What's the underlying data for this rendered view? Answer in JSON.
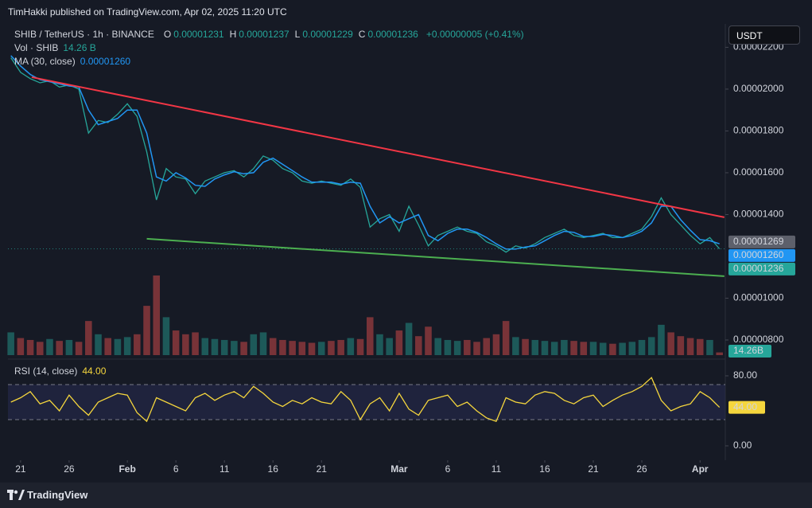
{
  "header": {
    "publisher": "TimHakki published on TradingView.com, Apr 02, 2025 11:20 UTC"
  },
  "toolbar": {
    "currency": "USDT"
  },
  "footer": {
    "brand": "TradingView"
  },
  "legend": {
    "symbol": "SHIB / TetherUS · 1h · BINANCE",
    "ohlc": [
      {
        "key": "O",
        "value": "0.00001231"
      },
      {
        "key": "H",
        "value": "0.00001237"
      },
      {
        "key": "L",
        "value": "0.00001229"
      },
      {
        "key": "C",
        "value": "0.00001236"
      }
    ],
    "change": "+0.00000005 (+0.41%)",
    "volume": {
      "name": "Vol · SHIB",
      "value": "14.26 B"
    },
    "ma": {
      "name": "MA (30, close)"
    },
    "rsi": {
      "name": "RSI (14, close)"
    }
  },
  "chart_data": [
    {
      "type": "line",
      "x": [
        -1,
        0,
        1,
        2,
        3,
        4,
        5,
        6,
        7,
        8,
        9,
        10,
        11,
        12,
        13,
        14,
        15,
        16,
        17,
        18,
        19,
        20,
        21,
        22,
        23,
        24,
        25,
        26,
        27,
        28,
        29,
        30,
        31,
        32,
        33,
        34,
        35,
        36,
        37,
        38,
        39,
        40,
        41,
        42,
        43,
        44,
        45,
        46,
        47,
        48,
        49,
        50,
        51,
        52,
        53,
        54,
        55,
        56,
        57,
        58,
        59,
        60,
        61,
        62,
        63,
        64,
        65,
        66,
        67,
        68,
        69,
        70,
        71,
        72
      ],
      "xlim": [
        -1.3,
        72.6
      ],
      "xticks": [
        {
          "value": 0,
          "label": "21"
        },
        {
          "value": 5,
          "label": "26"
        },
        {
          "value": 11,
          "label": "Feb"
        },
        {
          "value": 16,
          "label": "6"
        },
        {
          "value": 21,
          "label": "11"
        },
        {
          "value": 26,
          "label": "16"
        },
        {
          "value": 31,
          "label": "21"
        },
        {
          "value": 39,
          "label": "Mar"
        },
        {
          "value": 44,
          "label": "6"
        },
        {
          "value": 49,
          "label": "11"
        },
        {
          "value": 54,
          "label": "16"
        },
        {
          "value": 59,
          "label": "21"
        },
        {
          "value": 64,
          "label": "26"
        },
        {
          "value": 70,
          "label": "Apr"
        }
      ],
      "ylim": [
        7.124e-06,
        2.312e-05
      ],
      "yticks": [
        {
          "value": 8e-06,
          "label": "0.00000800"
        },
        {
          "value": 1e-05,
          "label": "0.00001000"
        },
        {
          "value": 1.4e-05,
          "label": "0.00001400"
        },
        {
          "value": 1.6e-05,
          "label": "0.00001600"
        },
        {
          "value": 1.8e-05,
          "label": "0.00001800"
        },
        {
          "value": 2e-05,
          "label": "0.00002000"
        },
        {
          "value": 2.2e-05,
          "label": "0.00002200"
        }
      ],
      "grid": false,
      "series": [
        {
          "color": "#26a69a",
          "values": [
            2.15e-05,
            2.08e-05,
            2.05e-05,
            2.03e-05,
            2.04e-05,
            2.01e-05,
            2.02e-05,
            2e-05,
            1.79e-05,
            1.85e-05,
            1.84e-05,
            1.88e-05,
            1.93e-05,
            1.87e-05,
            1.7e-05,
            1.47e-05,
            1.62e-05,
            1.58e-05,
            1.57e-05,
            1.5e-05,
            1.56e-05,
            1.58e-05,
            1.6e-05,
            1.61e-05,
            1.58e-05,
            1.62e-05,
            1.68e-05,
            1.66e-05,
            1.62e-05,
            1.6e-05,
            1.56e-05,
            1.55e-05,
            1.56e-05,
            1.55e-05,
            1.54e-05,
            1.57e-05,
            1.53e-05,
            1.34e-05,
            1.38e-05,
            1.4e-05,
            1.32e-05,
            1.44e-05,
            1.35e-05,
            1.25e-05,
            1.3e-05,
            1.32e-05,
            1.34e-05,
            1.32e-05,
            1.31e-05,
            1.27e-05,
            1.25e-05,
            1.22e-05,
            1.25e-05,
            1.24e-05,
            1.26e-05,
            1.29e-05,
            1.31e-05,
            1.33e-05,
            1.3e-05,
            1.29e-05,
            1.3e-05,
            1.31e-05,
            1.29e-05,
            1.29e-05,
            1.31e-05,
            1.33e-05,
            1.39e-05,
            1.48e-05,
            1.4e-05,
            1.35e-05,
            1.3e-05,
            1.26e-05,
            1.29e-05,
            1.236e-05
          ]
        },
        {
          "color": "#2196f3",
          "values": [
            2.16e-05,
            2.11e-05,
            2.07e-05,
            2.045e-05,
            2.035e-05,
            2.025e-05,
            2.015e-05,
            2.01e-05,
            1.9e-05,
            1.83e-05,
            1.845e-05,
            1.86e-05,
            1.9e-05,
            1.9e-05,
            1.79e-05,
            1.58e-05,
            1.56e-05,
            1.6e-05,
            1.575e-05,
            1.54e-05,
            1.535e-05,
            1.57e-05,
            1.59e-05,
            1.605e-05,
            1.595e-05,
            1.6e-05,
            1.65e-05,
            1.67e-05,
            1.64e-05,
            1.61e-05,
            1.58e-05,
            1.555e-05,
            1.555e-05,
            1.555e-05,
            1.545e-05,
            1.555e-05,
            1.55e-05,
            1.44e-05,
            1.36e-05,
            1.39e-05,
            1.36e-05,
            1.38e-05,
            1.4e-05,
            1.3e-05,
            1.275e-05,
            1.31e-05,
            1.33e-05,
            1.33e-05,
            1.315e-05,
            1.29e-05,
            1.26e-05,
            1.235e-05,
            1.235e-05,
            1.245e-05,
            1.25e-05,
            1.275e-05,
            1.3e-05,
            1.32e-05,
            1.315e-05,
            1.295e-05,
            1.295e-05,
            1.305e-05,
            1.3e-05,
            1.29e-05,
            1.3e-05,
            1.32e-05,
            1.36e-05,
            1.44e-05,
            1.44e-05,
            1.375e-05,
            1.325e-05,
            1.28e-05,
            1.275e-05,
            1.26e-05
          ]
        }
      ],
      "volume": {
        "up_color": "#26a69a",
        "down_color": "#ef5350",
        "values": [
          120,
          90,
          80,
          70,
          85,
          75,
          80,
          70,
          180,
          110,
          90,
          85,
          95,
          110,
          260,
          420,
          200,
          130,
          110,
          120,
          90,
          85,
          80,
          75,
          70,
          110,
          120,
          90,
          80,
          75,
          70,
          65,
          70,
          75,
          80,
          90,
          85,
          200,
          110,
          90,
          130,
          170,
          100,
          150,
          90,
          80,
          75,
          80,
          70,
          90,
          110,
          180,
          95,
          85,
          80,
          75,
          70,
          80,
          75,
          70,
          70,
          65,
          60,
          65,
          70,
          80,
          95,
          160,
          120,
          100,
          90,
          85,
          80,
          14.26
        ],
        "tag": "14.26B"
      },
      "trendlines": [
        {
          "color": "#f23645",
          "x": [
            1.15,
            72.5
          ],
          "values": [
            2.057e-05,
            1.387e-05
          ]
        },
        {
          "color": "#4caf50",
          "x": [
            13.0,
            72.5
          ],
          "values": [
            1.284e-05,
            1.105e-05
          ]
        }
      ],
      "tags": [
        {
          "value": 1.269e-05,
          "label": "0.00001269",
          "color": "#5d606b"
        },
        {
          "value": 1.26e-05,
          "label": "0.00001260",
          "color": "#2196f3"
        },
        {
          "value": 1.236e-05,
          "label": "0.00001236",
          "color": "#26a69a"
        }
      ]
    },
    {
      "type": "line",
      "ylim": [
        -16.4,
        98.2
      ],
      "yticks": [
        {
          "value": 80,
          "label": "80.00"
        },
        {
          "value": 0,
          "label": "0.00"
        }
      ],
      "levels": [
        70,
        30
      ],
      "band_color": "#2a2e5a",
      "series": [
        {
          "color": "#f5d63d",
          "values": [
            50,
            55,
            62,
            48,
            52,
            40,
            58,
            45,
            35,
            50,
            55,
            60,
            58,
            38,
            28,
            55,
            50,
            45,
            40,
            55,
            60,
            52,
            58,
            62,
            55,
            68,
            60,
            50,
            45,
            52,
            48,
            55,
            50,
            48,
            62,
            52,
            30,
            48,
            55,
            40,
            60,
            42,
            35,
            52,
            55,
            58,
            45,
            50,
            40,
            32,
            28,
            55,
            50,
            48,
            58,
            62,
            60,
            52,
            48,
            55,
            58,
            45,
            52,
            58,
            62,
            68,
            78,
            52,
            40,
            45,
            48,
            62,
            55,
            44
          ]
        }
      ],
      "tag": {
        "value": 44,
        "label": "44.00"
      }
    }
  ]
}
